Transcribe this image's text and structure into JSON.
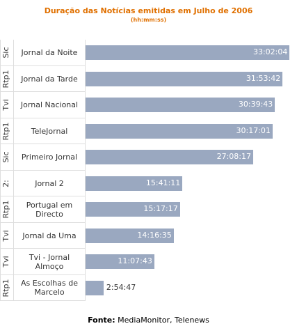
{
  "chart_data": {
    "type": "bar",
    "orientation": "horizontal",
    "title": "Duração das Notícias emitidas em Julho de 2006",
    "subtitle": "(hh:mm:ss)",
    "groups": [
      "Sic",
      "Rtp1",
      "Tvi",
      "Rtp1",
      "Sic",
      "2:",
      "Rtp1",
      "Tvi",
      "Tvi",
      "Rtp1"
    ],
    "categories": [
      "Jornal da Noite",
      "Jornal da Tarde",
      "Jornal Nacional",
      "TeleJornal",
      "Primeiro Jornal",
      "Jornal 2",
      "Portugal em Directo",
      "Jornal da Uma",
      "Tvi - Jornal Almoço",
      "As Escolhas de Marcelo"
    ],
    "values": [
      118924,
      114822,
      110383,
      109021,
      97697,
      56471,
      55037,
      51395,
      40063,
      10487
    ],
    "value_labels": [
      "33:02:04",
      "31:53:42",
      "30:39:43",
      "30:17:01",
      "27:08:17",
      "15:41:11",
      "15:17:17",
      "14:16:35",
      "11:07:43",
      "2:54:47"
    ],
    "color": "#9aa8c0",
    "xlim": [
      0,
      120000
    ],
    "source_label": "Fonte:",
    "source": "MediaMonitor, Telenews"
  }
}
